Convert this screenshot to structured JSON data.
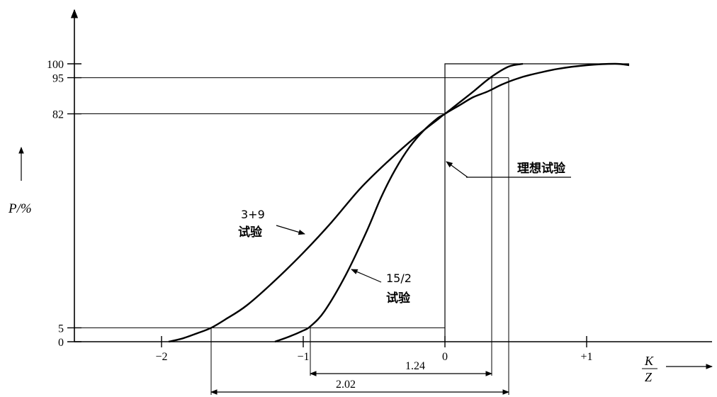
{
  "chart_data": {
    "type": "line",
    "title": "",
    "ylabel": "P/%",
    "xlabel": {
      "numerator": "K",
      "denominator": "Z"
    },
    "xlim": [
      -2.65,
      1.9
    ],
    "ylim": [
      0,
      100
    ],
    "x_ticks": [
      {
        "value": -2,
        "label": "−2"
      },
      {
        "value": -1,
        "label": "−1"
      },
      {
        "value": 0,
        "label": "0"
      },
      {
        "value": 1,
        "label": "+1"
      }
    ],
    "y_ticks": [
      {
        "value": 0,
        "label": "0"
      },
      {
        "value": 5,
        "label": "5"
      },
      {
        "value": 82,
        "label": "82"
      },
      {
        "value": 95,
        "label": "95"
      },
      {
        "value": 100,
        "label": "100"
      }
    ],
    "reference_lines": {
      "y5_from_x": -2.65,
      "y82_from_x": -2.65,
      "y95_from_x": -2.65,
      "y100_from_x": -2.65,
      "ideal_step_x": 0
    },
    "series": [
      {
        "name": "3+9 试验",
        "label_lines": [
          "3+9",
          "试验"
        ],
        "x": [
          -1.95,
          -1.85,
          -1.75,
          -1.65,
          -1.55,
          -1.4,
          -1.2,
          -1.0,
          -0.8,
          -0.6,
          -0.4,
          -0.2,
          -0.05,
          0.0,
          0.1,
          0.2,
          0.3,
          0.4,
          0.5,
          0.6,
          0.8,
          1.0,
          1.2,
          1.3
        ],
        "y": [
          0,
          1.2,
          3.0,
          5.0,
          8.0,
          13.0,
          22.0,
          32.0,
          43.0,
          55.0,
          65.0,
          74.0,
          80.0,
          82.0,
          85.0,
          88.0,
          90.0,
          92.5,
          94.5,
          96.0,
          98.2,
          99.5,
          100.0,
          99.5
        ]
      },
      {
        "name": "15/2 试验",
        "label_lines": [
          "15/2",
          "试验"
        ],
        "x": [
          -1.2,
          -1.1,
          -1.0,
          -0.95,
          -0.85,
          -0.7,
          -0.55,
          -0.45,
          -0.35,
          -0.25,
          -0.15,
          -0.05,
          0.0,
          0.1,
          0.2,
          0.32,
          0.45,
          0.55
        ],
        "y": [
          0,
          1.8,
          4.0,
          5.5,
          11.0,
          24.0,
          40.0,
          52.0,
          62.0,
          70.0,
          76.0,
          80.5,
          82.0,
          86.0,
          90.0,
          95.0,
          99.0,
          100.0
        ]
      },
      {
        "name": "理想试验",
        "label_lines": [
          "理想试验"
        ],
        "x": [
          -2.65,
          0,
          0,
          1.3
        ],
        "y": [
          0,
          0,
          100,
          100
        ]
      }
    ],
    "annotations": [
      {
        "text": "1.24",
        "from_x": -0.95,
        "to_x": 0.33
      },
      {
        "text": "2.02",
        "from_x": -1.65,
        "to_x": 0.45
      }
    ]
  }
}
